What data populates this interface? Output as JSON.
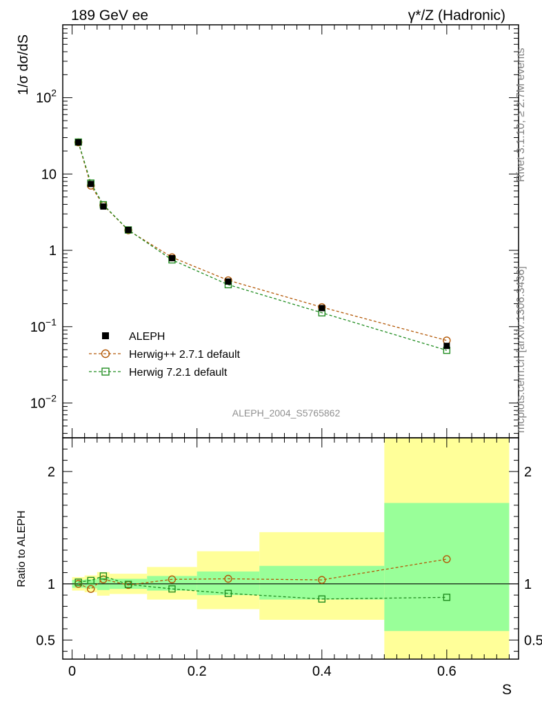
{
  "header": {
    "left": "189 GeV ee",
    "right": "γ*/Z (Hadronic)"
  },
  "side_text": {
    "rivet": "Rivet 3.1.10, ≥ 2.7M events",
    "mcplots": "mcplots.cern.ch [arXiv:1306.3436]"
  },
  "analysis_id": "ALEPH_2004_S5765862",
  "colors": {
    "data": "#000000",
    "herwigpp": "#b35806",
    "herwig7": "#1f8c1f",
    "band_stat": "#99ff99",
    "band_total": "#ffff99"
  },
  "chart_data": [
    {
      "type": "scatter",
      "panel": "main",
      "ylabel": "1/σ  dσ/dS",
      "yscale": "log",
      "xlim": [
        -0.015,
        0.715
      ],
      "ylim": [
        0.0035,
        900
      ],
      "y_ticks": [
        {
          "v": 0.01,
          "base": "10",
          "exp": "−2"
        },
        {
          "v": 0.1,
          "base": "10",
          "exp": "−1"
        },
        {
          "v": 1,
          "base": "1",
          "exp": ""
        },
        {
          "v": 10,
          "base": "10",
          "exp": ""
        },
        {
          "v": 100,
          "base": "10",
          "exp": "2"
        }
      ],
      "legend_position": "bottom-left",
      "series": [
        {
          "name": "ALEPH",
          "marker": "filled-square",
          "color": "#000000",
          "x": [
            0.01,
            0.03,
            0.05,
            0.09,
            0.16,
            0.25,
            0.4,
            0.6
          ],
          "y": [
            26.0,
            7.4,
            3.75,
            1.85,
            0.79,
            0.39,
            0.175,
            0.056
          ]
        },
        {
          "name": "Herwig++ 2.7.1 default",
          "marker": "open-circle",
          "line": "dashed",
          "color": "#b35806",
          "x": [
            0.01,
            0.03,
            0.05,
            0.09,
            0.16,
            0.25,
            0.4,
            0.6
          ],
          "y": [
            26.0,
            7.05,
            3.9,
            1.83,
            0.81,
            0.405,
            0.18,
            0.066
          ]
        },
        {
          "name": "Herwig 7.2.1 default",
          "marker": "open-square",
          "line": "dashed",
          "color": "#1f8c1f",
          "x": [
            0.01,
            0.03,
            0.05,
            0.09,
            0.16,
            0.25,
            0.4,
            0.6
          ],
          "y": [
            26.2,
            7.6,
            3.95,
            1.85,
            0.75,
            0.355,
            0.152,
            0.049
          ]
        }
      ]
    },
    {
      "type": "scatter",
      "panel": "ratio",
      "xlabel": "S",
      "ylabel": "Ratio to ALEPH",
      "xlim": [
        -0.015,
        0.715
      ],
      "ylim": [
        0.33,
        2.3
      ],
      "x_ticks": [
        {
          "v": 0,
          "label": "0"
        },
        {
          "v": 0.2,
          "label": "0.2"
        },
        {
          "v": 0.4,
          "label": "0.4"
        },
        {
          "v": 0.6,
          "label": "0.6"
        }
      ],
      "y_ticks": [
        {
          "v": 0.5,
          "label": "0.5"
        },
        {
          "v": 1,
          "label": "1"
        },
        {
          "v": 2,
          "label": "2"
        }
      ],
      "bins": [
        {
          "lo": 0.0,
          "hi": 0.02,
          "stat": [
            0.965,
            1.035
          ],
          "total": [
            0.94,
            1.06
          ]
        },
        {
          "lo": 0.02,
          "hi": 0.04,
          "stat": [
            0.96,
            1.04
          ],
          "total": [
            0.925,
            1.075
          ]
        },
        {
          "lo": 0.04,
          "hi": 0.06,
          "stat": [
            0.945,
            1.055
          ],
          "total": [
            0.895,
            1.105
          ]
        },
        {
          "lo": 0.06,
          "hi": 0.12,
          "stat": [
            0.955,
            1.045
          ],
          "total": [
            0.91,
            1.09
          ]
        },
        {
          "lo": 0.12,
          "hi": 0.2,
          "stat": [
            0.94,
            1.07
          ],
          "total": [
            0.86,
            1.15
          ]
        },
        {
          "lo": 0.2,
          "hi": 0.3,
          "stat": [
            0.9,
            1.11
          ],
          "total": [
            0.775,
            1.29
          ]
        },
        {
          "lo": 0.3,
          "hi": 0.5,
          "stat": [
            0.86,
            1.16
          ],
          "total": [
            0.68,
            1.46
          ]
        },
        {
          "lo": 0.5,
          "hi": 0.7,
          "stat": [
            0.58,
            1.72
          ],
          "total": [
            0.33,
            2.3
          ]
        }
      ],
      "series": [
        {
          "name": "Herwig++ 2.7.1 default",
          "x": [
            0.01,
            0.03,
            0.05,
            0.09,
            0.16,
            0.25,
            0.4,
            0.6
          ],
          "y": [
            1.0,
            0.955,
            1.04,
            0.99,
            1.04,
            1.045,
            1.035,
            1.22
          ]
        },
        {
          "name": "Herwig 7.2.1 default",
          "x": [
            0.01,
            0.03,
            0.05,
            0.09,
            0.16,
            0.25,
            0.4,
            0.6
          ],
          "y": [
            1.015,
            1.03,
            1.07,
            0.995,
            0.955,
            0.915,
            0.865,
            0.88
          ]
        }
      ]
    }
  ]
}
